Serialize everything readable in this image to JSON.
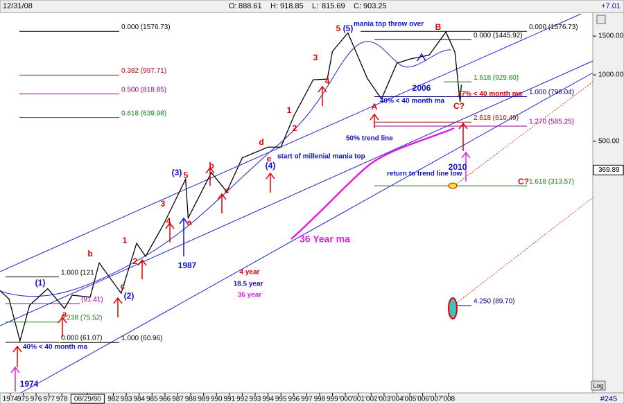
{
  "chart_data": {
    "type": "line",
    "log_scale": true,
    "header": {
      "date": "12/31/08",
      "ohlc_labels": [
        "O:",
        "H:",
        "L:",
        "C:"
      ],
      "ohlc": [
        888.61,
        918.85,
        815.69,
        903.25
      ],
      "change": "+7.01"
    },
    "footer": {
      "count": "#245",
      "log_button": "Log"
    },
    "xlim": [
      1973.2,
      2019.2
    ],
    "ylim": [
      36,
      1920
    ],
    "yticks": [
      {
        "value": 500,
        "label": "500.00"
      },
      {
        "value": 1000,
        "label": "1000.00"
      },
      {
        "value": 1500,
        "label": "1500.00"
      }
    ],
    "cursor_price": 369.89,
    "xticks": [
      {
        "value": 1974,
        "label": "1974"
      },
      {
        "value": 1975,
        "label": "975"
      },
      {
        "value": 1976,
        "label": "976"
      },
      {
        "value": 1977,
        "label": "977"
      },
      {
        "value": 1978,
        "label": "978"
      },
      {
        "value": 1980,
        "label": "08/29/80"
      },
      {
        "value": 1982,
        "label": "982"
      },
      {
        "value": 1983,
        "label": "983"
      },
      {
        "value": 1984,
        "label": "984"
      },
      {
        "value": 1985,
        "label": "985"
      },
      {
        "value": 1986,
        "label": "986"
      },
      {
        "value": 1987,
        "label": "987"
      },
      {
        "value": 1988,
        "label": "988"
      },
      {
        "value": 1989,
        "label": "989"
      },
      {
        "value": 1990,
        "label": "990"
      },
      {
        "value": 1991,
        "label": "991"
      },
      {
        "value": 1992,
        "label": "992"
      },
      {
        "value": 1993,
        "label": "993"
      },
      {
        "value": 1994,
        "label": "994"
      },
      {
        "value": 1995,
        "label": "995"
      },
      {
        "value": 1996,
        "label": "996"
      },
      {
        "value": 1997,
        "label": "997"
      },
      {
        "value": 1998,
        "label": "998"
      },
      {
        "value": 1999,
        "label": "999"
      },
      {
        "value": 2000,
        "label": "'000"
      },
      {
        "value": 2001,
        "label": "'001"
      },
      {
        "value": 2002,
        "label": "'002"
      },
      {
        "value": 2003,
        "label": "'003"
      },
      {
        "value": 2004,
        "label": "'004"
      },
      {
        "value": 2005,
        "label": "'005"
      },
      {
        "value": 2006,
        "label": "'006"
      },
      {
        "value": 2007,
        "label": "'007"
      },
      {
        "value": 2008,
        "label": "'008"
      }
    ],
    "series": [
      {
        "color": "#000000",
        "x": [
          1973.2,
          1973.9,
          1974.75,
          1975.5,
          1976.9,
          1978.2,
          1978.8,
          1980.2,
          1980.9,
          1982.6,
          1983.8,
          1984.5,
          1985.9,
          1987.6,
          1987.8,
          1989.6,
          1990.8,
          1992.0,
          1994.0,
          1995.0,
          1996.0,
          1997.5,
          1998.6,
          1999.0,
          2000.2,
          2001.7,
          2002.8,
          2004.0,
          2005.0,
          2006.5,
          2007.8,
          2008.5,
          2008.9,
          2009.0
        ],
        "values": [
          105,
          96,
          62,
          90,
          107,
          87,
          100,
          98,
          140,
          102,
          172,
          150,
          210,
          336,
          224,
          360,
          295,
          420,
          470,
          470,
          650,
          950,
          957,
          1280,
          1550,
          965,
          777,
          1130,
          1180,
          1230,
          1565,
          1270,
          752,
          903
        ]
      }
    ],
    "levels": [
      {
        "value": 1576.73,
        "label": "0.000 (1576.73)",
        "color": "#000000"
      },
      {
        "value": 997.71,
        "label": "0.382 (997.71)",
        "color": "#a01010"
      },
      {
        "value": 818.85,
        "label": "0.500 (818.85)",
        "color": "#900090"
      },
      {
        "value": 639.98,
        "label": "0.618 (639.98)",
        "color": "#108010"
      },
      {
        "value": 1576.73,
        "label": "0.000 (1576.73)",
        "color": "#000000"
      },
      {
        "value": 1445.92,
        "label": "0.000 (1445.92)",
        "color": "#000000"
      },
      {
        "value": 929.6,
        "label": "1.618 (929.60)",
        "color": "#108010"
      },
      {
        "value": 796.04,
        "label": "1.000 (796.04)",
        "color": "#000080"
      },
      {
        "value": 610.49,
        "label": "2.618 (610.49)",
        "color": "#a01010"
      },
      {
        "value": 585.25,
        "label": "1.270 (585.25)",
        "color": "#900090"
      },
      {
        "value": 313.57,
        "label": "1.618 (313.57)",
        "color": "#108010"
      },
      {
        "value": 89.7,
        "label": "4.250 (89.70)",
        "color": "#000080"
      },
      {
        "value": 121,
        "label": "1.000 (121",
        "color": "#000000"
      },
      {
        "value": 91.41,
        "label": "(91.41)",
        "color": "#900090"
      },
      {
        "value": 75.52,
        "label": "0.238 (75.52)",
        "color": "#108010"
      },
      {
        "value": 61.07,
        "label": "0.000 (61.07)",
        "color": "#000000"
      },
      {
        "value": 60.96,
        "label": "1.000 (60.96)",
        "color": "#000000"
      }
    ],
    "annotations": [
      {
        "text": "5",
        "color": "#e00000"
      },
      {
        "text": "(5)",
        "color": "#1010d0"
      },
      {
        "text": "mania top throw over",
        "color": "#1010d0"
      },
      {
        "text": "B",
        "color": "#e00000"
      },
      {
        "text": "3",
        "color": "#e00000"
      },
      {
        "text": "4",
        "color": "#e00000"
      },
      {
        "text": "A",
        "color": "#e00000"
      },
      {
        "text": "C?",
        "color": "#e00000"
      },
      {
        "text": "2006",
        "color": "#1010d0"
      },
      {
        "text": "1",
        "color": "#e00000"
      },
      {
        "text": "2",
        "color": "#e00000"
      },
      {
        "text": "d",
        "color": "#e00000"
      },
      {
        "text": "e",
        "color": "#e00000"
      },
      {
        "text": "(4)",
        "color": "#1010d0"
      },
      {
        "text": "start of millenial mania top",
        "color": "#1010d0"
      },
      {
        "text": "50% trend line",
        "color": "#1010d0"
      },
      {
        "text": "(3)",
        "color": "#1010d0"
      },
      {
        "text": "5",
        "color": "#e00000"
      },
      {
        "text": "b",
        "color": "#e00000"
      },
      {
        "text": "3",
        "color": "#e00000"
      },
      {
        "text": "4",
        "color": "#e00000"
      },
      {
        "text": "a",
        "color": "#e00000"
      },
      {
        "text": "c",
        "color": "#e00000"
      },
      {
        "text": "1987",
        "color": "#1010d0"
      },
      {
        "text": "1",
        "color": "#e00000"
      },
      {
        "text": "2",
        "color": "#e00000"
      },
      {
        "text": "b",
        "color": "#e00000"
      },
      {
        "text": "(1)",
        "color": "#1010d0"
      },
      {
        "text": "c",
        "color": "#e00000"
      },
      {
        "text": "(2)",
        "color": "#1010d0"
      },
      {
        "text": "a",
        "color": "#e00000"
      },
      {
        "text": "1974",
        "color": "#1010d0"
      },
      {
        "text": "40% < 40 month ma",
        "color": "#1010d0"
      },
      {
        "text": "40% < 40 month ma",
        "color": "#1010d0"
      },
      {
        "text": "37% < 40 month ma",
        "color": "#e00000"
      },
      {
        "text": "return to trend line low",
        "color": "#1010d0"
      },
      {
        "text": "C?",
        "color": "#e00000"
      },
      {
        "text": "2010",
        "color": "#1010d0"
      },
      {
        "text": "36 Year ma",
        "color": "#e020e0"
      },
      {
        "text": "4 year",
        "color": "#e00000"
      },
      {
        "text": "18.5 year",
        "color": "#1010d0"
      },
      {
        "text": "36 year",
        "color": "#e020e0"
      }
    ]
  }
}
